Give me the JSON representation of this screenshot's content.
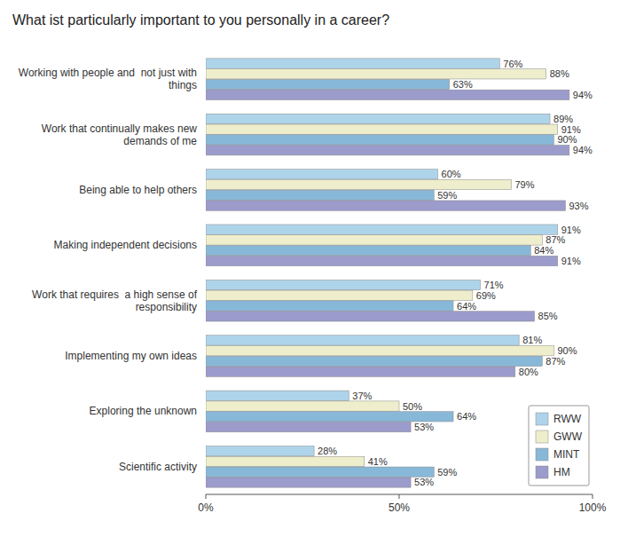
{
  "chart_data": {
    "type": "bar",
    "orientation": "horizontal",
    "title": "What ist particularly important to you personally in a career?",
    "categories": [
      "Working with people and  not just with\nthings",
      "Work that continually makes new\ndemands of me",
      "Being able to help others",
      "Making independent decisions",
      "Work that requires  a high sense of\nresponsibility",
      "Implementing my own ideas",
      "Exploring the unknown",
      "Scientific activity"
    ],
    "series": [
      {
        "name": "RWW",
        "color": "#aed4ea",
        "values": [
          76,
          89,
          60,
          91,
          71,
          81,
          37,
          28
        ],
        "value_labels": [
          "76%",
          "89%",
          "60%",
          "91%",
          "71%",
          "81%",
          "37%",
          "28%"
        ]
      },
      {
        "name": "GWW",
        "color": "#eeeecc",
        "values": [
          88,
          91,
          79,
          87,
          69,
          90,
          50,
          41
        ],
        "value_labels": [
          "88%",
          "91%",
          "79%",
          "87%",
          "69%",
          "90%",
          "50%",
          "41%"
        ]
      },
      {
        "name": "MINT",
        "color": "#88b8d8",
        "values": [
          63,
          90,
          59,
          84,
          64,
          87,
          64,
          59
        ],
        "value_labels": [
          "63%",
          "90%",
          "59%",
          "84%",
          "64%",
          "87%",
          "64%",
          "59%"
        ]
      },
      {
        "name": "HM",
        "color": "#9b9bcc",
        "values": [
          94,
          94,
          93,
          91,
          85,
          80,
          53,
          53
        ],
        "value_labels": [
          "94%",
          "94%",
          "93%",
          "91%",
          "85%",
          "80%",
          "53%",
          "53%"
        ]
      }
    ],
    "xlim": [
      0,
      100
    ],
    "xticks": [
      {
        "value": 0,
        "label": "0%"
      },
      {
        "value": 50,
        "label": "50%"
      },
      {
        "value": 100,
        "label": "100%"
      }
    ],
    "data_labels": true,
    "legend": "lower right",
    "grid": false
  }
}
